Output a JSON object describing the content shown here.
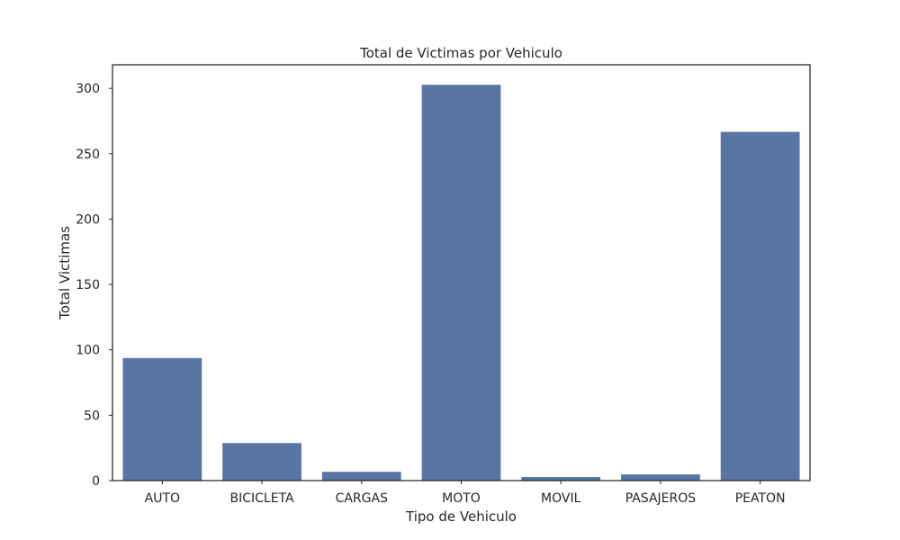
{
  "chart_data": {
    "type": "bar",
    "title": "Total de Victimas por Vehiculo",
    "xlabel": "Tipo de Vehiculo",
    "ylabel": "Total Victimas",
    "categories": [
      "AUTO",
      "BICICLETA",
      "CARGAS",
      "MOTO",
      "MOVIL",
      "PASAJEROS",
      "PEATON"
    ],
    "values": [
      94,
      29,
      7,
      303,
      3,
      5,
      267
    ],
    "ylim": [
      0,
      318
    ],
    "yticks": [
      0,
      50,
      100,
      150,
      200,
      250,
      300
    ],
    "grid": false,
    "bar_color": "#5975a4"
  }
}
